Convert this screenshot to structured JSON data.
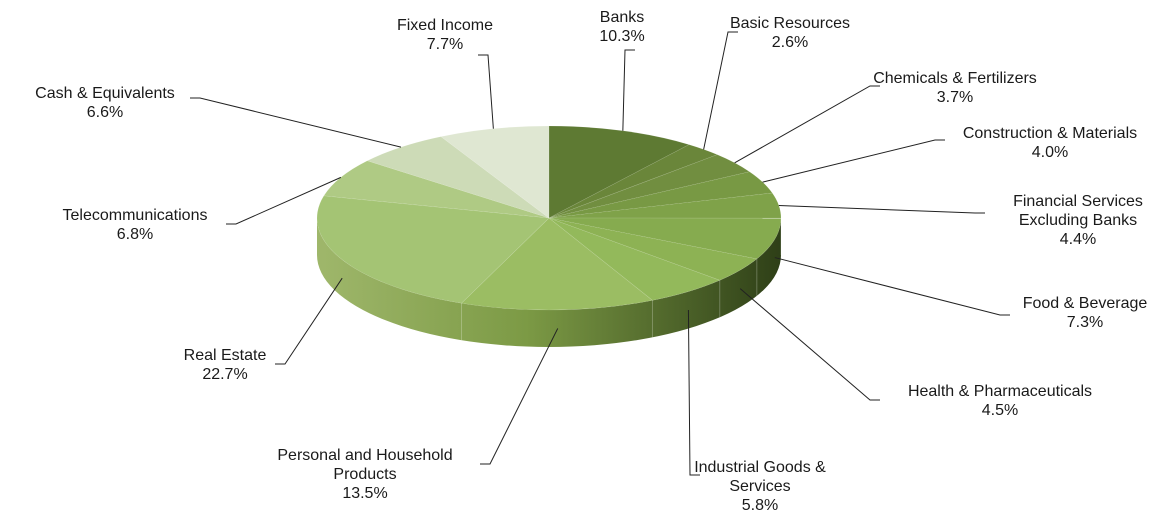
{
  "chart_data": {
    "type": "pie",
    "title": "",
    "slices": [
      {
        "label": "Banks",
        "lines": [
          "Banks"
        ],
        "value": 10.3,
        "value_label": "10.3%",
        "color": "#5e7a33"
      },
      {
        "label": "Basic Resources",
        "lines": [
          "Basic Resources"
        ],
        "value": 2.6,
        "value_label": "2.6%",
        "color": "#6a863a"
      },
      {
        "label": "Chemicals & Fertilizers",
        "lines": [
          "Chemicals & Fertilizers"
        ],
        "value": 3.7,
        "value_label": "3.7%",
        "color": "#718e40"
      },
      {
        "label": "Construction & Materials",
        "lines": [
          "Construction & Materials"
        ],
        "value": 4.0,
        "value_label": "4.0%",
        "color": "#789944"
      },
      {
        "label": "Financial Services Excluding Banks",
        "lines": [
          "Financial Services",
          "Excluding Banks"
        ],
        "value": 4.4,
        "value_label": "4.4%",
        "color": "#7fa249"
      },
      {
        "label": "Food & Beverage",
        "lines": [
          "Food & Beverage"
        ],
        "value": 7.3,
        "value_label": "7.3%",
        "color": "#86ab4f"
      },
      {
        "label": "Health & Pharmaceuticals",
        "lines": [
          "Health & Pharmaceuticals"
        ],
        "value": 4.5,
        "value_label": "4.5%",
        "color": "#8db254"
      },
      {
        "label": "Industrial Goods & Services",
        "lines": [
          "Industrial Goods &",
          "Services"
        ],
        "value": 5.8,
        "value_label": "5.8%",
        "color": "#93b95b"
      },
      {
        "label": "Personal and Household Products",
        "lines": [
          "Personal and Household",
          "Products"
        ],
        "value": 13.5,
        "value_label": "13.5%",
        "color": "#9bbd63"
      },
      {
        "label": "Real Estate",
        "lines": [
          "Real Estate"
        ],
        "value": 22.7,
        "value_label": "22.7%",
        "color": "#a4c474"
      },
      {
        "label": "Telecommunications",
        "lines": [
          "Telecommunications"
        ],
        "value": 6.8,
        "value_label": "6.8%",
        "color": "#afca84"
      },
      {
        "label": "Cash & Equivalents",
        "lines": [
          "Cash &  Equivalents"
        ],
        "value": 6.6,
        "value_label": "6.6%",
        "color": "#cddbb7"
      },
      {
        "label": "Fixed Income",
        "lines": [
          "Fixed Income"
        ],
        "value": 7.7,
        "value_label": "7.7%",
        "color": "#dfe7d2"
      }
    ]
  }
}
